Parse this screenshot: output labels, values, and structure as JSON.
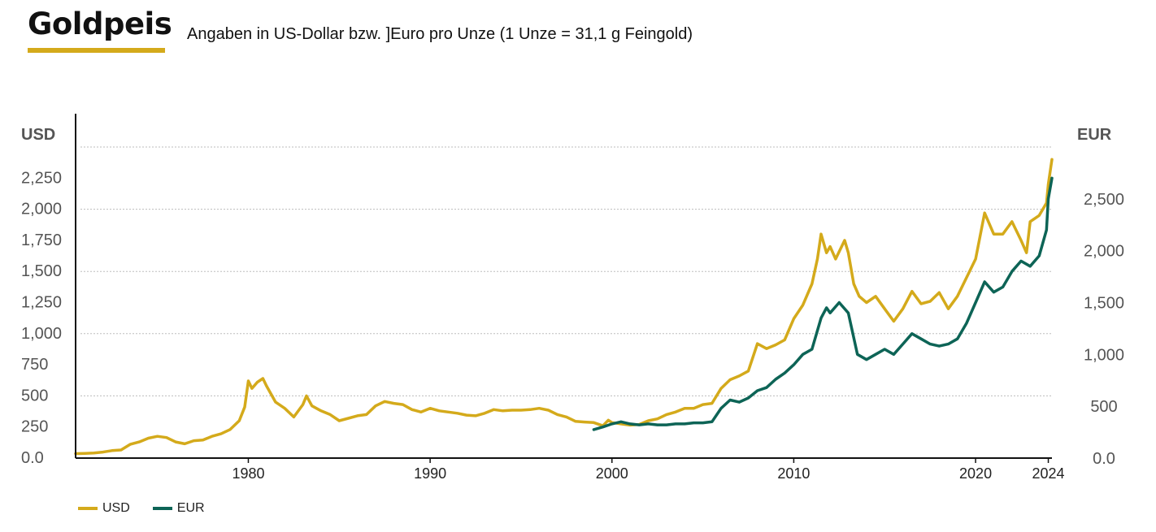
{
  "header": {
    "title": "Goldpeis",
    "subtitle": "Angaben in US-Dollar bzw. ]Euro pro Unze (1 Unze = 31,1 g Feingold)"
  },
  "colors": {
    "usd": "#D4AA1B",
    "eur": "#0D6456",
    "accent": "#D4AA1B"
  },
  "chart_data": {
    "type": "line",
    "left_axis": {
      "label": "USD",
      "ylim": [
        0,
        2500
      ],
      "ticks": [
        0,
        250,
        500,
        750,
        1000,
        1250,
        1500,
        1750,
        2000,
        2250
      ],
      "tick_labels": [
        "0.0",
        "250",
        "500",
        "750",
        "1,000",
        "1,250",
        "1,500",
        "1,750",
        "2,000",
        "2,250"
      ]
    },
    "right_axis": {
      "label": "EUR",
      "ylim": [
        0,
        3000
      ],
      "ticks": [
        0,
        500,
        1000,
        1500,
        2000,
        2500
      ],
      "tick_labels": [
        "0.0",
        "500",
        "1,000",
        "1,500",
        "2,000",
        "2,500"
      ]
    },
    "x_axis": {
      "xlim": [
        1970.5,
        2024.2
      ],
      "ticks": [
        1980,
        1990,
        2000,
        2010,
        2020,
        2024
      ],
      "tick_labels": [
        "1980",
        "1990",
        "2000",
        "2010",
        "2020",
        "2024"
      ]
    },
    "grid": "horizontal-dashed",
    "legend": "bottom-left",
    "series": [
      {
        "name": "USD",
        "color": "#D4AA1B",
        "axis": "left",
        "points": [
          [
            1970.5,
            36
          ],
          [
            1971,
            38
          ],
          [
            1971.5,
            41
          ],
          [
            1972,
            48
          ],
          [
            1972.5,
            60
          ],
          [
            1973,
            65
          ],
          [
            1973.5,
            110
          ],
          [
            1974,
            130
          ],
          [
            1974.5,
            160
          ],
          [
            1975,
            175
          ],
          [
            1975.5,
            165
          ],
          [
            1976,
            130
          ],
          [
            1976.5,
            115
          ],
          [
            1977,
            140
          ],
          [
            1977.5,
            145
          ],
          [
            1978,
            175
          ],
          [
            1978.5,
            195
          ],
          [
            1979,
            230
          ],
          [
            1979.5,
            300
          ],
          [
            1979.8,
            410
          ],
          [
            1980.0,
            620
          ],
          [
            1980.2,
            560
          ],
          [
            1980.5,
            610
          ],
          [
            1980.8,
            640
          ],
          [
            1981,
            580
          ],
          [
            1981.5,
            450
          ],
          [
            1982,
            400
          ],
          [
            1982.5,
            330
          ],
          [
            1983,
            430
          ],
          [
            1983.2,
            500
          ],
          [
            1983.5,
            420
          ],
          [
            1984,
            380
          ],
          [
            1984.5,
            350
          ],
          [
            1985,
            300
          ],
          [
            1985.5,
            320
          ],
          [
            1986,
            340
          ],
          [
            1986.5,
            350
          ],
          [
            1987,
            420
          ],
          [
            1987.5,
            455
          ],
          [
            1988,
            440
          ],
          [
            1988.5,
            430
          ],
          [
            1989,
            390
          ],
          [
            1989.5,
            370
          ],
          [
            1990,
            400
          ],
          [
            1990.5,
            380
          ],
          [
            1991,
            370
          ],
          [
            1991.5,
            360
          ],
          [
            1992,
            345
          ],
          [
            1992.5,
            340
          ],
          [
            1993,
            360
          ],
          [
            1993.5,
            390
          ],
          [
            1994,
            380
          ],
          [
            1994.5,
            385
          ],
          [
            1995,
            385
          ],
          [
            1995.5,
            390
          ],
          [
            1996,
            400
          ],
          [
            1996.5,
            385
          ],
          [
            1997,
            350
          ],
          [
            1997.5,
            330
          ],
          [
            1998,
            295
          ],
          [
            1998.5,
            290
          ],
          [
            1999,
            285
          ],
          [
            1999.5,
            260
          ],
          [
            1999.8,
            305
          ],
          [
            2000,
            285
          ],
          [
            2000.5,
            275
          ],
          [
            2001,
            265
          ],
          [
            2001.5,
            270
          ],
          [
            2002,
            300
          ],
          [
            2002.5,
            315
          ],
          [
            2003,
            350
          ],
          [
            2003.5,
            370
          ],
          [
            2004,
            400
          ],
          [
            2004.5,
            400
          ],
          [
            2005,
            430
          ],
          [
            2005.5,
            440
          ],
          [
            2006,
            560
          ],
          [
            2006.5,
            630
          ],
          [
            2007,
            660
          ],
          [
            2007.5,
            700
          ],
          [
            2008,
            920
          ],
          [
            2008.5,
            880
          ],
          [
            2009,
            910
          ],
          [
            2009.5,
            950
          ],
          [
            2010,
            1120
          ],
          [
            2010.5,
            1230
          ],
          [
            2011,
            1400
          ],
          [
            2011.3,
            1600
          ],
          [
            2011.5,
            1800
          ],
          [
            2011.8,
            1650
          ],
          [
            2012,
            1700
          ],
          [
            2012.3,
            1600
          ],
          [
            2012.8,
            1750
          ],
          [
            2013,
            1650
          ],
          [
            2013.3,
            1400
          ],
          [
            2013.6,
            1300
          ],
          [
            2014,
            1250
          ],
          [
            2014.5,
            1300
          ],
          [
            2015,
            1200
          ],
          [
            2015.5,
            1100
          ],
          [
            2016,
            1200
          ],
          [
            2016.5,
            1340
          ],
          [
            2017,
            1240
          ],
          [
            2017.5,
            1260
          ],
          [
            2018,
            1330
          ],
          [
            2018.5,
            1200
          ],
          [
            2019,
            1300
          ],
          [
            2019.5,
            1450
          ],
          [
            2020,
            1600
          ],
          [
            2020.5,
            1970
          ],
          [
            2021,
            1800
          ],
          [
            2021.5,
            1800
          ],
          [
            2022,
            1900
          ],
          [
            2022.5,
            1750
          ],
          [
            2022.8,
            1650
          ],
          [
            2023,
            1900
          ],
          [
            2023.5,
            1950
          ],
          [
            2023.9,
            2050
          ],
          [
            2024.0,
            2200
          ],
          [
            2024.2,
            2400
          ]
        ]
      },
      {
        "name": "EUR",
        "color": "#0D6456",
        "axis": "right",
        "points": [
          [
            1999,
            275
          ],
          [
            1999.5,
            300
          ],
          [
            2000,
            330
          ],
          [
            2000.5,
            350
          ],
          [
            2001,
            330
          ],
          [
            2001.5,
            320
          ],
          [
            2002,
            330
          ],
          [
            2002.5,
            320
          ],
          [
            2003,
            320
          ],
          [
            2003.5,
            330
          ],
          [
            2004,
            330
          ],
          [
            2004.5,
            340
          ],
          [
            2005,
            340
          ],
          [
            2005.5,
            350
          ],
          [
            2006,
            480
          ],
          [
            2006.5,
            560
          ],
          [
            2007,
            540
          ],
          [
            2007.5,
            580
          ],
          [
            2008,
            650
          ],
          [
            2008.5,
            680
          ],
          [
            2009,
            760
          ],
          [
            2009.5,
            820
          ],
          [
            2010,
            900
          ],
          [
            2010.5,
            1000
          ],
          [
            2011,
            1050
          ],
          [
            2011.5,
            1350
          ],
          [
            2011.8,
            1450
          ],
          [
            2012,
            1400
          ],
          [
            2012.5,
            1500
          ],
          [
            2013,
            1400
          ],
          [
            2013.5,
            1000
          ],
          [
            2014,
            950
          ],
          [
            2014.5,
            1000
          ],
          [
            2015,
            1050
          ],
          [
            2015.5,
            1000
          ],
          [
            2016,
            1100
          ],
          [
            2016.5,
            1200
          ],
          [
            2017,
            1150
          ],
          [
            2017.5,
            1100
          ],
          [
            2018,
            1080
          ],
          [
            2018.5,
            1100
          ],
          [
            2019,
            1150
          ],
          [
            2019.5,
            1300
          ],
          [
            2020,
            1500
          ],
          [
            2020.5,
            1700
          ],
          [
            2021,
            1600
          ],
          [
            2021.5,
            1650
          ],
          [
            2022,
            1800
          ],
          [
            2022.5,
            1900
          ],
          [
            2023,
            1850
          ],
          [
            2023.5,
            1950
          ],
          [
            2023.9,
            2200
          ],
          [
            2024.0,
            2500
          ],
          [
            2024.2,
            2700
          ]
        ]
      }
    ]
  },
  "legend_items": [
    {
      "label": "USD"
    },
    {
      "label": "EUR"
    }
  ]
}
